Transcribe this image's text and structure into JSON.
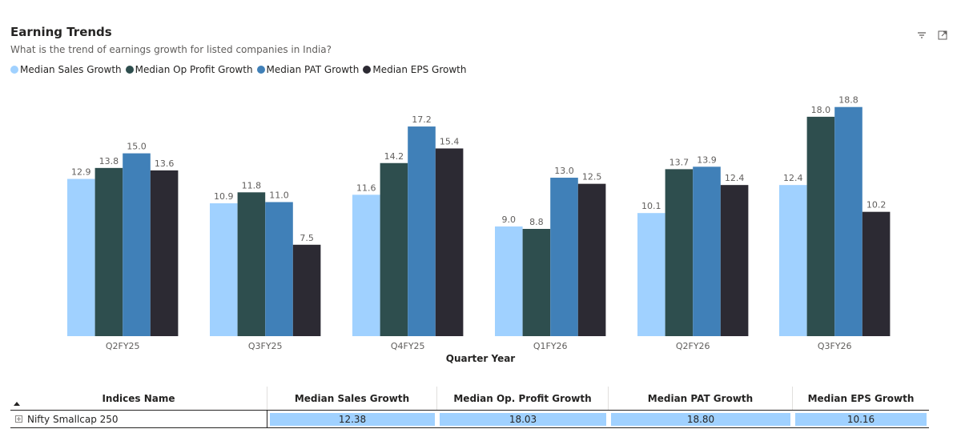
{
  "header": {
    "title": "Earning Trends",
    "subtitle": "What is the trend of earnings growth for listed companies in India?"
  },
  "toolbar": {
    "icons": [
      "filter-icon",
      "focus-mode-icon"
    ]
  },
  "chart_data": {
    "type": "bar",
    "title": "Earning Trends",
    "subtitle": "What is the trend of earnings growth for listed companies in India?",
    "xlabel": "Quarter Year",
    "ylabel": "",
    "categories": [
      "Q2FY25",
      "Q3FY25",
      "Q4FY25",
      "Q1FY26",
      "Q2FY26",
      "Q3FY26"
    ],
    "series": [
      {
        "name": "Median Sales Growth",
        "color": "#a0d1ff",
        "values": [
          12.9,
          10.9,
          11.6,
          9.0,
          10.1,
          12.4
        ]
      },
      {
        "name": "Median Op Profit Growth",
        "color": "#2e4e4e",
        "values": [
          13.8,
          11.8,
          14.2,
          8.8,
          13.7,
          18.0
        ]
      },
      {
        "name": "Median PAT Growth",
        "color": "#4080b8",
        "values": [
          15.0,
          11.0,
          17.2,
          13.0,
          13.9,
          18.8
        ]
      },
      {
        "name": "Median EPS Growth",
        "color": "#2c2a33",
        "values": [
          13.6,
          7.5,
          15.4,
          12.5,
          12.4,
          10.2
        ]
      }
    ],
    "ylim": [
      0,
      19.7
    ],
    "grid": false,
    "legend": "top-left"
  },
  "table": {
    "columns": [
      "Indices Name",
      "Median Sales Growth",
      "Median Op. Profit Growth",
      "Median PAT Growth",
      "Median EPS Growth"
    ],
    "rows": [
      {
        "name": "Nifty Smallcap 250",
        "values": [
          "12.38",
          "18.03",
          "18.80",
          "10.16"
        ]
      }
    ]
  }
}
